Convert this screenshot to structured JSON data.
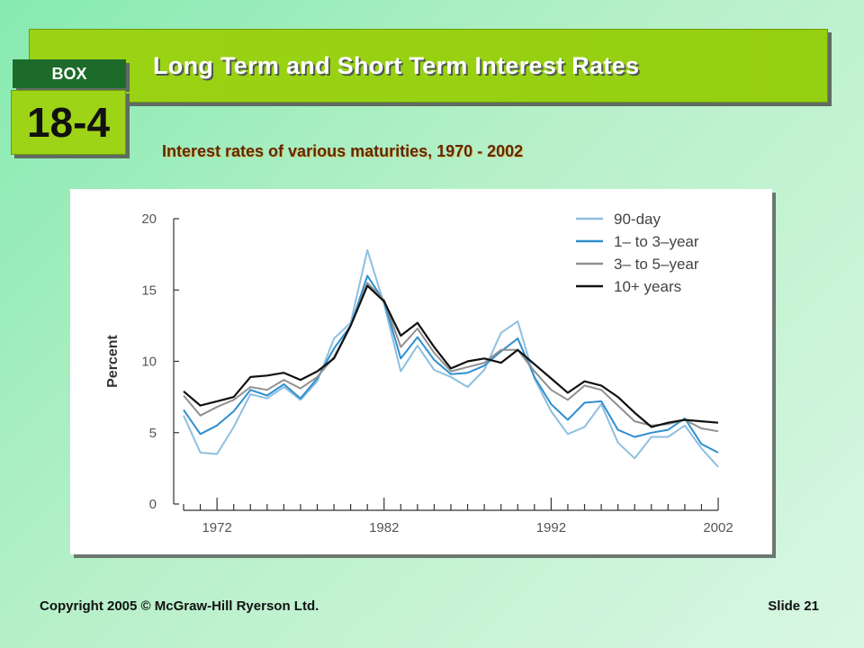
{
  "slide": {
    "title": "Long Term and Short Term Interest Rates",
    "box_label": "BOX",
    "box_number": "18-4",
    "subtitle": "Interest rates of various maturities, 1970 - 2002",
    "copyright": "Copyright 2005 © McGraw-Hill Ryerson Ltd.",
    "slide_number": "Slide 21"
  },
  "colors": {
    "title_bar": "#9bd214",
    "box_dark": "#1d6b2a",
    "subtitle_text": "#5b2a0e"
  },
  "chart_data": {
    "type": "line",
    "ylabel": "Percent",
    "xlabel": "",
    "ylim": [
      0,
      20
    ],
    "xlim": [
      1970,
      2002
    ],
    "yticks": [
      0,
      5,
      10,
      15,
      20
    ],
    "xtick_labels": [
      "1972",
      "1982",
      "1992",
      "2002"
    ],
    "xtick_values": [
      1972,
      1982,
      1992,
      2002
    ],
    "grid": false,
    "legend_position": "top-right",
    "x": [
      1970,
      1971,
      1972,
      1973,
      1974,
      1975,
      1976,
      1977,
      1978,
      1979,
      1980,
      1981,
      1982,
      1983,
      1984,
      1985,
      1986,
      1987,
      1988,
      1989,
      1990,
      1991,
      1992,
      1993,
      1994,
      1995,
      1996,
      1997,
      1998,
      1999,
      2000,
      2001,
      2002
    ],
    "series": [
      {
        "name": "90-day",
        "color": "#8fbfe0",
        "values": [
          6.2,
          3.6,
          3.5,
          5.4,
          7.7,
          7.4,
          8.2,
          7.3,
          8.6,
          11.6,
          12.7,
          17.8,
          14.0,
          9.3,
          11.1,
          9.4,
          8.9,
          8.2,
          9.4,
          12.0,
          12.8,
          8.8,
          6.5,
          4.9,
          5.4,
          7.0,
          4.3,
          3.2,
          4.7,
          4.7,
          5.5,
          3.9,
          2.6
        ]
      },
      {
        "name": "1– to 3–year",
        "color": "#2f8fcf",
        "values": [
          6.6,
          4.9,
          5.5,
          6.5,
          8.0,
          7.6,
          8.4,
          7.4,
          8.8,
          10.9,
          12.5,
          16.0,
          14.2,
          10.2,
          11.7,
          10.1,
          9.1,
          9.2,
          9.7,
          10.7,
          11.6,
          8.9,
          7.0,
          5.9,
          7.1,
          7.2,
          5.2,
          4.7,
          5.0,
          5.2,
          6.0,
          4.2,
          3.6
        ]
      },
      {
        "name": "3– to 5–year",
        "color": "#909090",
        "values": [
          7.6,
          6.2,
          6.8,
          7.3,
          8.2,
          8.0,
          8.7,
          8.1,
          8.9,
          10.3,
          12.5,
          15.5,
          14.3,
          11.0,
          12.3,
          10.6,
          9.3,
          9.6,
          9.9,
          10.8,
          10.8,
          9.3,
          8.0,
          7.3,
          8.3,
          8.0,
          6.9,
          5.8,
          5.5,
          5.6,
          5.9,
          5.3,
          5.1
        ]
      },
      {
        "name": "10+ years",
        "color": "#111111",
        "values": [
          7.9,
          6.9,
          7.2,
          7.5,
          8.9,
          9.0,
          9.2,
          8.7,
          9.3,
          10.2,
          12.5,
          15.3,
          14.2,
          11.8,
          12.7,
          11.0,
          9.5,
          10.0,
          10.2,
          9.9,
          10.8,
          9.8,
          8.8,
          7.8,
          8.6,
          8.3,
          7.5,
          6.4,
          5.4,
          5.7,
          5.9,
          5.8,
          5.7
        ]
      }
    ]
  }
}
